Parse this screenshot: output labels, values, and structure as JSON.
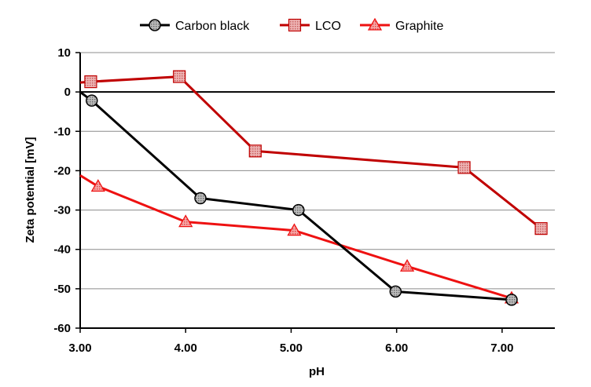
{
  "chart_data": {
    "type": "line",
    "title": "",
    "xlabel": "pH",
    "ylabel": "Zeta potential [mV]",
    "xlim": [
      3.0,
      7.5
    ],
    "ylim": [
      -60,
      10
    ],
    "x_ticks": [
      "3.00",
      "4.00",
      "5.00",
      "6.00",
      "7.00"
    ],
    "y_ticks": [
      "10",
      "0",
      "-10",
      "-20",
      "-30",
      "-40",
      "-50",
      "-60"
    ],
    "grid": true,
    "legend_position": "top",
    "series": [
      {
        "name": "Carbon black",
        "color": "#000000",
        "marker": "circle",
        "marker_fill": "#888888",
        "x": [
          3.0,
          3.11,
          4.14,
          5.07,
          5.99,
          7.09
        ],
        "y": [
          0.0,
          -2.2,
          -27.0,
          -30.0,
          -50.7,
          -52.8
        ]
      },
      {
        "name": "LCO",
        "color": "#c00000",
        "marker": "square",
        "marker_fill": "#e39a9a",
        "x": [
          3.0,
          3.1,
          3.94,
          4.66,
          6.64,
          7.37
        ],
        "y": [
          2.4,
          2.6,
          3.9,
          -15.0,
          -19.2,
          -34.7
        ]
      },
      {
        "name": "Graphite",
        "color": "#ee1111",
        "marker": "triangle",
        "marker_fill": "#f07a7a",
        "x": [
          3.0,
          3.17,
          4.0,
          5.03,
          6.1,
          7.09
        ],
        "y": [
          -21.2,
          -24.0,
          -33.0,
          -35.2,
          -44.3,
          -52.4
        ]
      }
    ]
  }
}
